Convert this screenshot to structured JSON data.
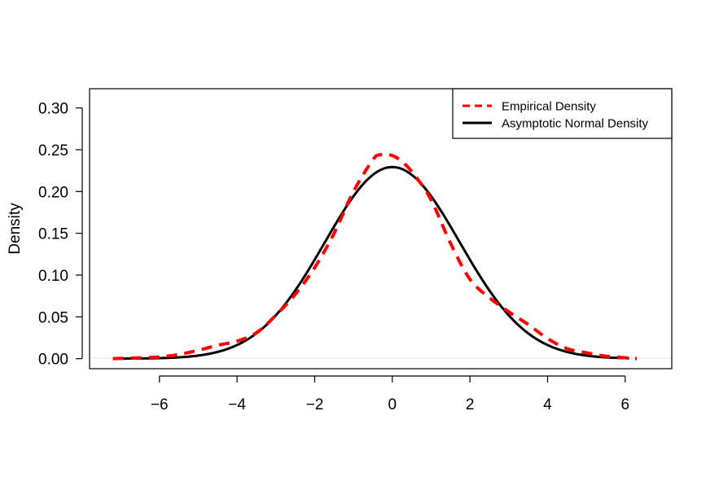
{
  "chart_data": {
    "type": "line",
    "title": "",
    "xlabel": "",
    "ylabel": "Density",
    "xlim": [
      -7.8,
      7.2
    ],
    "ylim": [
      -0.012,
      0.323
    ],
    "x_ticks": [
      -6,
      -4,
      -2,
      0,
      2,
      4,
      6
    ],
    "x_tick_labels": [
      "−6",
      "−4",
      "−2",
      "0",
      "2",
      "4",
      "6"
    ],
    "y_ticks": [
      0.0,
      0.05,
      0.1,
      0.15,
      0.2,
      0.25,
      0.3
    ],
    "y_tick_labels": [
      "0.00",
      "0.05",
      "0.10",
      "0.15",
      "0.20",
      "0.25",
      "0.30"
    ],
    "legend_position": "top-right",
    "series": [
      {
        "name": "Empirical Density",
        "color": "#ff0000",
        "dash": "dashed",
        "x": [
          -7.2,
          -6.5,
          -6.0,
          -5.5,
          -5.0,
          -4.5,
          -4.0,
          -3.5,
          -3.0,
          -2.5,
          -2.0,
          -1.5,
          -1.0,
          -0.5,
          -0.3,
          0.0,
          0.3,
          0.6,
          1.0,
          1.5,
          2.0,
          2.5,
          3.0,
          3.5,
          4.0,
          4.5,
          5.0,
          5.5,
          6.0,
          6.3
        ],
        "y": [
          0.0,
          0.001,
          0.002,
          0.005,
          0.01,
          0.016,
          0.021,
          0.031,
          0.052,
          0.077,
          0.109,
          0.15,
          0.2,
          0.238,
          0.244,
          0.243,
          0.234,
          0.218,
          0.19,
          0.138,
          0.095,
          0.073,
          0.056,
          0.041,
          0.024,
          0.012,
          0.007,
          0.003,
          0.001,
          0.0
        ]
      },
      {
        "name": "Asymptotic Normal Density",
        "color": "#000000",
        "dash": "solid",
        "distribution": {
          "mean": 0,
          "sd": 1.74
        },
        "x_range": [
          -7.0,
          6.1
        ]
      }
    ]
  }
}
